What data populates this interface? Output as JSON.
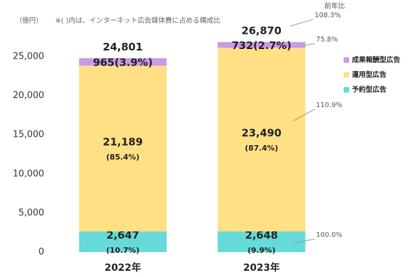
{
  "chart_data": {
    "type": "stacked_bar",
    "unit_label": "（億円）",
    "note": "※( )内は、インターネット広告媒体費に占める構成比",
    "yoy_header": "前年比",
    "categories": [
      "2022年",
      "2023年"
    ],
    "series": [
      {
        "name": "予約型広告",
        "color": "#66d9d9",
        "values": [
          2647,
          2648
        ],
        "value_labels": [
          "2,647",
          "2,648"
        ],
        "share_labels": [
          "(10.7%)",
          "(9.9%)"
        ],
        "yoy_label": "100.0%"
      },
      {
        "name": "運用型広告",
        "color": "#ffe084",
        "values": [
          21189,
          23490
        ],
        "value_labels": [
          "21,189",
          "23,490"
        ],
        "share_labels": [
          "(85.4%)",
          "(87.4%)"
        ],
        "yoy_label": "110.9%"
      },
      {
        "name": "成果報酬型広告",
        "color": "#cc99e6",
        "values": [
          965,
          732
        ],
        "value_labels": [
          "965",
          "732"
        ],
        "share_labels": [
          "(3.9%)",
          "(2.7%)"
        ],
        "yoy_label": "75.8%"
      }
    ],
    "totals": [
      24801,
      26870
    ],
    "total_labels": [
      "24,801",
      "26,870"
    ],
    "total_yoy_label": "108.3%",
    "ylim": [
      0,
      27500
    ],
    "yticks": [
      0,
      {
        "value": 5000,
        "label": "5,000"
      },
      {
        "value": 10000,
        "label": "10,000"
      },
      {
        "value": 15000,
        "label": "15,000"
      },
      {
        "value": 20000,
        "label": "20,000"
      },
      {
        "value": 25000,
        "label": "25,000"
      }
    ],
    "grid": false
  }
}
